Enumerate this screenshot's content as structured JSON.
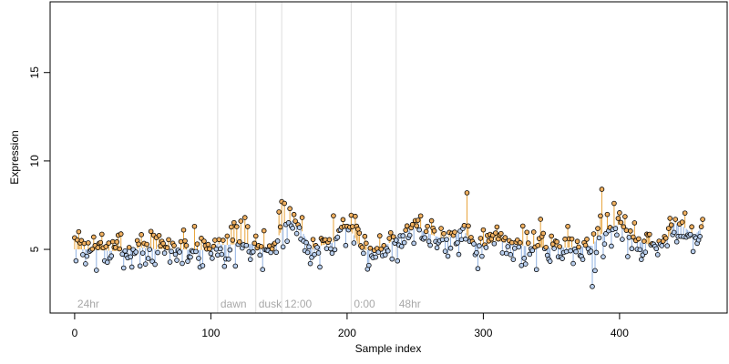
{
  "chart_data": {
    "type": "scatter",
    "xlabel": "Sample index",
    "ylabel": "Expression",
    "xlim": [
      -18,
      479
    ],
    "ylim": [
      1.4,
      19.0
    ],
    "x_ticks": [
      0,
      100,
      200,
      300,
      400
    ],
    "y_ticks": [
      5,
      10,
      15
    ],
    "grid": false,
    "baseline": {
      "description": "fitted curve",
      "values": [
        [
          0,
          5.0
        ],
        [
          10,
          5.0
        ],
        [
          20,
          4.95
        ],
        [
          30,
          4.9
        ],
        [
          40,
          5.0
        ],
        [
          50,
          5.1
        ],
        [
          60,
          5.0
        ],
        [
          70,
          5.05
        ],
        [
          80,
          5.0
        ],
        [
          90,
          4.95
        ],
        [
          100,
          5.0
        ],
        [
          105,
          5.3
        ],
        [
          110,
          5.25
        ],
        [
          120,
          5.3
        ],
        [
          130,
          5.3
        ],
        [
          135,
          5.0
        ],
        [
          145,
          5.0
        ],
        [
          150,
          5.8
        ],
        [
          155,
          6.5
        ],
        [
          160,
          6.6
        ],
        [
          165,
          6.3
        ],
        [
          170,
          5.6
        ],
        [
          175,
          5.0
        ],
        [
          180,
          5.2
        ],
        [
          190,
          5.4
        ],
        [
          195,
          6.2
        ],
        [
          200,
          6.3
        ],
        [
          205,
          5.8
        ],
        [
          210,
          5.0
        ],
        [
          220,
          4.9
        ],
        [
          225,
          5.0
        ],
        [
          230,
          5.3
        ],
        [
          240,
          5.9
        ],
        [
          250,
          6.2
        ],
        [
          260,
          5.9
        ],
        [
          270,
          5.6
        ],
        [
          280,
          5.8
        ],
        [
          285,
          6.2
        ],
        [
          290,
          5.5
        ],
        [
          300,
          5.2
        ],
        [
          310,
          5.5
        ],
        [
          320,
          5.3
        ],
        [
          330,
          5.2
        ],
        [
          340,
          5.1
        ],
        [
          350,
          5.1
        ],
        [
          360,
          5.1
        ],
        [
          370,
          5.1
        ],
        [
          375,
          5.2
        ],
        [
          380,
          5.2
        ],
        [
          385,
          5.8
        ],
        [
          390,
          6.0
        ],
        [
          395,
          6.3
        ],
        [
          400,
          6.4
        ],
        [
          410,
          5.5
        ],
        [
          420,
          5.3
        ],
        [
          430,
          5.3
        ],
        [
          435,
          5.5
        ],
        [
          440,
          6.5
        ],
        [
          445,
          6.4
        ],
        [
          450,
          6.1
        ],
        [
          455,
          5.8
        ],
        [
          460,
          6.2
        ]
      ]
    },
    "stems": {
      "above_color": "#e8a33a",
      "below_color": "#8fb0e0"
    },
    "point_style": {
      "fill_above": "#f0b060",
      "fill_below": "#b9cfee",
      "edge": "#000000"
    },
    "seed": 7,
    "noise_sd": 0.55,
    "n_points": 462,
    "outliers": [
      [
        3,
        6.0
      ],
      [
        14,
        5.7
      ],
      [
        42,
        4.0
      ],
      [
        88,
        6.3
      ],
      [
        125,
        6.8
      ],
      [
        152,
        7.7
      ],
      [
        154,
        7.6
      ],
      [
        167,
        6.8
      ],
      [
        180,
        4.0
      ],
      [
        190,
        6.9
      ],
      [
        288,
        8.2
      ],
      [
        362,
        6.3
      ],
      [
        380,
        2.9
      ],
      [
        382,
        3.8
      ],
      [
        387,
        8.4
      ],
      [
        396,
        7.6
      ],
      [
        428,
        4.7
      ]
    ],
    "vlines": [
      {
        "x": 105,
        "label": "dawn"
      },
      {
        "x": 133,
        "label": "dusk"
      },
      {
        "x": 152,
        "label": "12:00"
      },
      {
        "x": 203,
        "label": "0:00"
      },
      {
        "x": 236,
        "label": "48hr"
      }
    ],
    "corner_label": "24hr",
    "colors": {
      "axis": "#000000",
      "vline": "#dddddd",
      "label_grey": "#a8a8a8"
    }
  }
}
